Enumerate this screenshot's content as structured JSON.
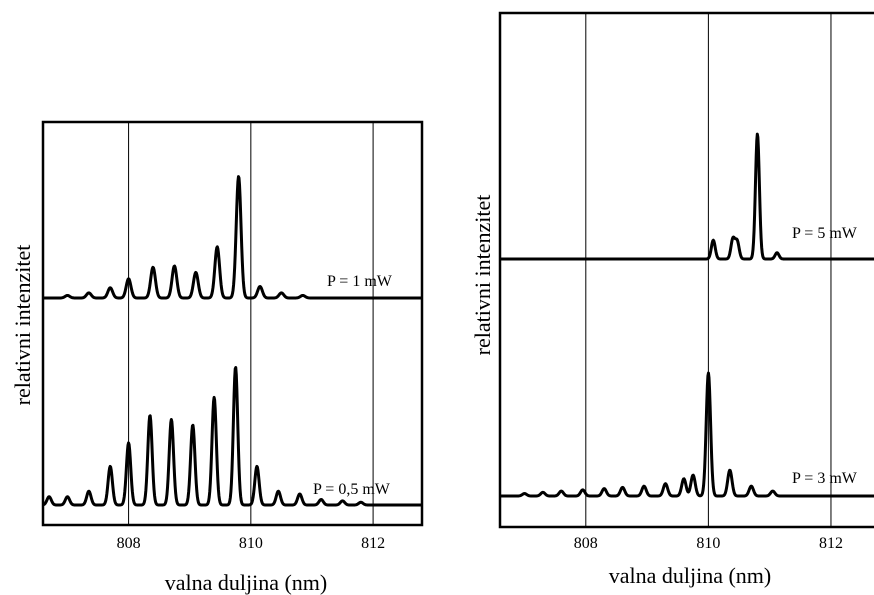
{
  "chart_data": [
    {
      "type": "line",
      "xlabel": "valna duljina (nm)",
      "ylabel": "relativni intenzitet",
      "xlim": [
        806.6,
        812.8
      ],
      "xticks": [
        808,
        810,
        812
      ],
      "xtick_labels": [
        "808",
        "810",
        "812"
      ],
      "grid": "vertical lines at ticks",
      "series": [
        {
          "name": "P = 1 mW",
          "baseline": 0.0,
          "peaks": [
            {
              "x": 807.0,
              "h": 0.02
            },
            {
              "x": 807.35,
              "h": 0.04
            },
            {
              "x": 807.7,
              "h": 0.08
            },
            {
              "x": 808.0,
              "h": 0.15
            },
            {
              "x": 808.4,
              "h": 0.24
            },
            {
              "x": 808.75,
              "h": 0.25
            },
            {
              "x": 809.1,
              "h": 0.2
            },
            {
              "x": 809.45,
              "h": 0.4
            },
            {
              "x": 809.8,
              "h": 0.95
            },
            {
              "x": 810.15,
              "h": 0.09
            },
            {
              "x": 810.5,
              "h": 0.04
            },
            {
              "x": 810.85,
              "h": 0.02
            }
          ]
        },
        {
          "name": "P = 0,5 mW",
          "baseline": 0.0,
          "peaks": [
            {
              "x": 806.7,
              "h": 0.06
            },
            {
              "x": 807.0,
              "h": 0.06
            },
            {
              "x": 807.35,
              "h": 0.1
            },
            {
              "x": 807.7,
              "h": 0.28
            },
            {
              "x": 808.0,
              "h": 0.45
            },
            {
              "x": 808.35,
              "h": 0.65
            },
            {
              "x": 808.7,
              "h": 0.62
            },
            {
              "x": 809.05,
              "h": 0.58
            },
            {
              "x": 809.4,
              "h": 0.78
            },
            {
              "x": 809.75,
              "h": 1.0
            },
            {
              "x": 810.1,
              "h": 0.28
            },
            {
              "x": 810.45,
              "h": 0.1
            },
            {
              "x": 810.8,
              "h": 0.08
            },
            {
              "x": 811.15,
              "h": 0.04
            },
            {
              "x": 811.5,
              "h": 0.03
            },
            {
              "x": 811.8,
              "h": 0.02
            }
          ]
        }
      ]
    },
    {
      "type": "line",
      "xlabel": "valna duljina (nm)",
      "ylabel": "relativni intenzitet",
      "xlim": [
        806.6,
        812.8
      ],
      "xticks": [
        808,
        810,
        812
      ],
      "xtick_labels": [
        "808",
        "810",
        "812"
      ],
      "grid": "vertical lines at ticks",
      "series": [
        {
          "name": "P = 5 mW",
          "baseline": 0.0,
          "peaks": [
            {
              "x": 810.08,
              "h": 0.15
            },
            {
              "x": 810.4,
              "h": 0.16
            },
            {
              "x": 810.47,
              "h": 0.14
            },
            {
              "x": 810.8,
              "h": 1.0
            },
            {
              "x": 811.12,
              "h": 0.05
            }
          ]
        },
        {
          "name": "P = 3 mW",
          "baseline": 0.0,
          "peaks": [
            {
              "x": 807.0,
              "h": 0.02
            },
            {
              "x": 807.3,
              "h": 0.03
            },
            {
              "x": 807.6,
              "h": 0.04
            },
            {
              "x": 807.95,
              "h": 0.05
            },
            {
              "x": 808.3,
              "h": 0.06
            },
            {
              "x": 808.6,
              "h": 0.07
            },
            {
              "x": 808.95,
              "h": 0.08
            },
            {
              "x": 809.3,
              "h": 0.1
            },
            {
              "x": 809.6,
              "h": 0.14
            },
            {
              "x": 809.75,
              "h": 0.17
            },
            {
              "x": 810.0,
              "h": 1.0
            },
            {
              "x": 810.35,
              "h": 0.21
            },
            {
              "x": 810.7,
              "h": 0.08
            },
            {
              "x": 811.05,
              "h": 0.04
            }
          ]
        }
      ]
    }
  ]
}
